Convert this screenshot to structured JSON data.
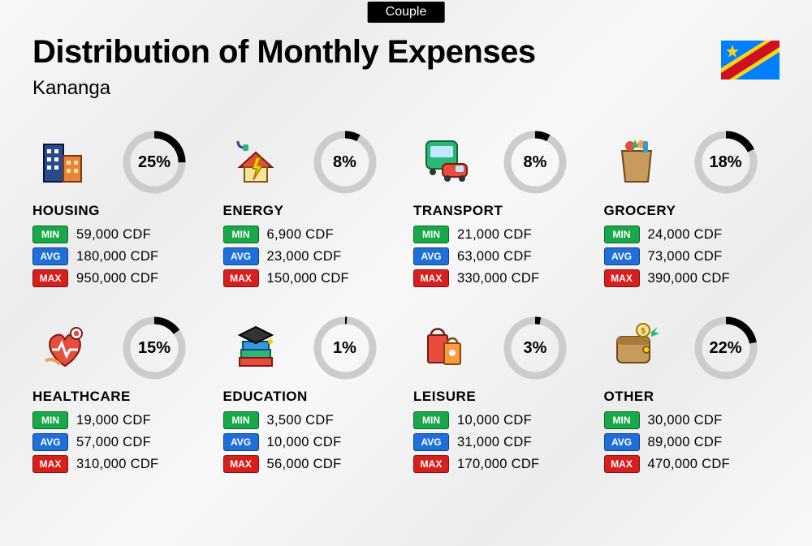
{
  "tab_label": "Couple",
  "title": "Distribution of Monthly Expenses",
  "subtitle": "Kananga",
  "currency": "CDF",
  "flag": {
    "bg": "#007fff",
    "stripe_outer": "#f7d618",
    "stripe_inner": "#ce1021",
    "star": "#f7d618"
  },
  "labels": {
    "min": "MIN",
    "avg": "AVG",
    "max": "MAX"
  },
  "badge_colors": {
    "min": "#18a849",
    "avg": "#1e6fd9",
    "max": "#d91e1e"
  },
  "ring": {
    "track_color": "#cccccc",
    "progress_color": "#000000",
    "stroke_width": 9,
    "radius": 34
  },
  "categories": [
    {
      "name": "HOUSING",
      "percent": 25,
      "min": "59,000",
      "avg": "180,000",
      "max": "950,000",
      "icon": "buildings"
    },
    {
      "name": "ENERGY",
      "percent": 8,
      "min": "6,900",
      "avg": "23,000",
      "max": "150,000",
      "icon": "energy"
    },
    {
      "name": "TRANSPORT",
      "percent": 8,
      "min": "21,000",
      "avg": "63,000",
      "max": "330,000",
      "icon": "transport"
    },
    {
      "name": "GROCERY",
      "percent": 18,
      "min": "24,000",
      "avg": "73,000",
      "max": "390,000",
      "icon": "grocery"
    },
    {
      "name": "HEALTHCARE",
      "percent": 15,
      "min": "19,000",
      "avg": "57,000",
      "max": "310,000",
      "icon": "healthcare"
    },
    {
      "name": "EDUCATION",
      "percent": 1,
      "min": "3,500",
      "avg": "10,000",
      "max": "56,000",
      "icon": "education"
    },
    {
      "name": "LEISURE",
      "percent": 3,
      "min": "10,000",
      "avg": "31,000",
      "max": "170,000",
      "icon": "leisure"
    },
    {
      "name": "OTHER",
      "percent": 22,
      "min": "30,000",
      "avg": "89,000",
      "max": "470,000",
      "icon": "other"
    }
  ]
}
